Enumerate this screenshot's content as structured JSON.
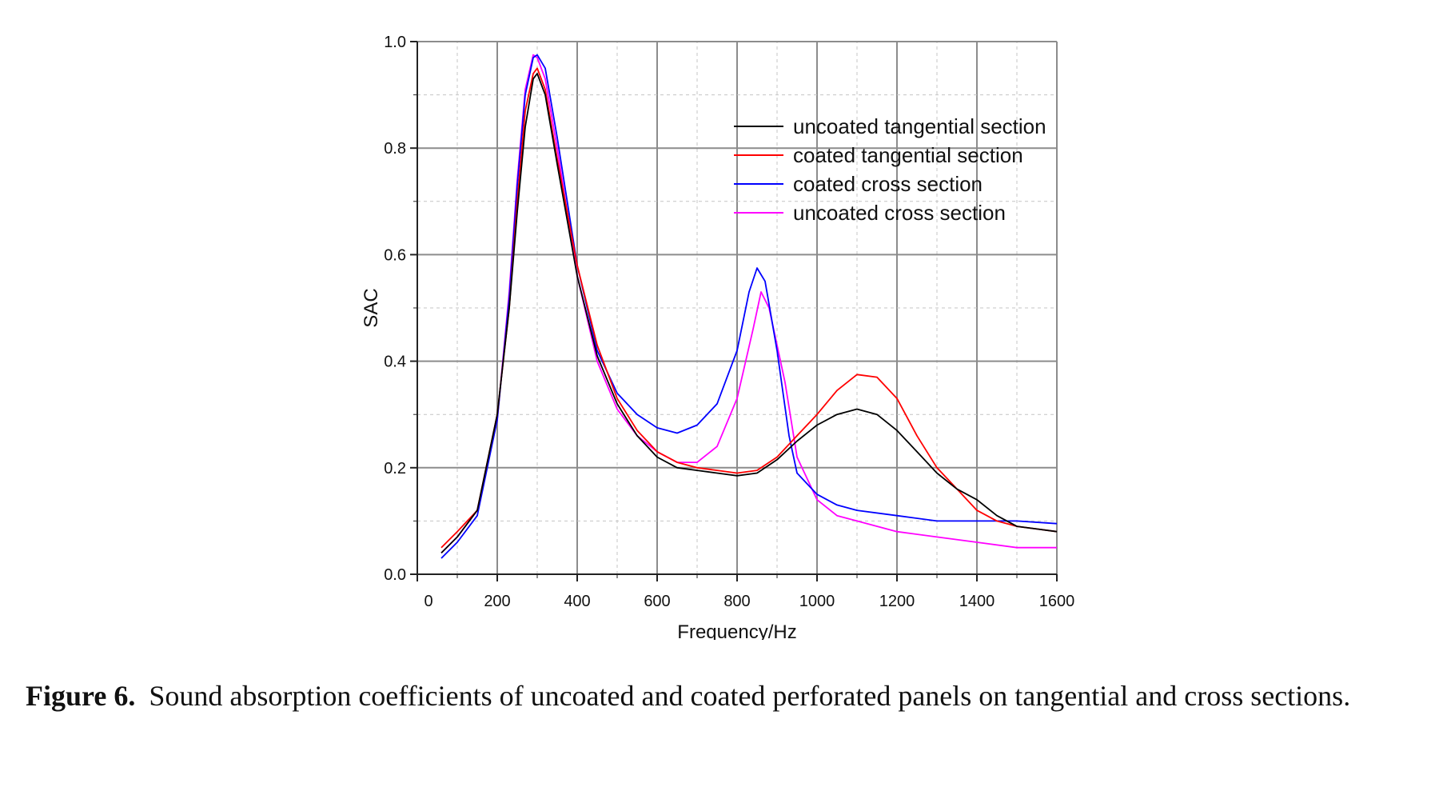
{
  "chart_data": {
    "type": "line",
    "xlabel": "Frequency/Hz",
    "ylabel": "SAC",
    "xlim": [
      0,
      1600
    ],
    "ylim": [
      0,
      1.0
    ],
    "x_ticks": [
      "0",
      "200",
      "400",
      "600",
      "800",
      "1000",
      "1200",
      "1400",
      "1600"
    ],
    "y_ticks": [
      "0.0",
      "0.2",
      "0.4",
      "0.6",
      "0.8",
      "1.0"
    ],
    "grid": true,
    "legend_position": "top-right",
    "series": [
      {
        "name": "uncoated tangential section",
        "color": "#000000",
        "points": [
          [
            60,
            0.04
          ],
          [
            100,
            0.07
          ],
          [
            150,
            0.12
          ],
          [
            200,
            0.3
          ],
          [
            230,
            0.5
          ],
          [
            250,
            0.68
          ],
          [
            270,
            0.84
          ],
          [
            290,
            0.93
          ],
          [
            300,
            0.94
          ],
          [
            320,
            0.9
          ],
          [
            350,
            0.77
          ],
          [
            400,
            0.56
          ],
          [
            450,
            0.41
          ],
          [
            500,
            0.32
          ],
          [
            550,
            0.26
          ],
          [
            600,
            0.22
          ],
          [
            650,
            0.2
          ],
          [
            700,
            0.195
          ],
          [
            750,
            0.19
          ],
          [
            800,
            0.185
          ],
          [
            850,
            0.19
          ],
          [
            900,
            0.215
          ],
          [
            950,
            0.25
          ],
          [
            1000,
            0.28
          ],
          [
            1050,
            0.3
          ],
          [
            1100,
            0.31
          ],
          [
            1150,
            0.3
          ],
          [
            1200,
            0.27
          ],
          [
            1250,
            0.23
          ],
          [
            1300,
            0.19
          ],
          [
            1350,
            0.16
          ],
          [
            1400,
            0.14
          ],
          [
            1450,
            0.11
          ],
          [
            1500,
            0.09
          ],
          [
            1550,
            0.085
          ],
          [
            1600,
            0.08
          ]
        ]
      },
      {
        "name": "coated tangential section",
        "color": "#ff0000",
        "points": [
          [
            60,
            0.05
          ],
          [
            100,
            0.08
          ],
          [
            150,
            0.12
          ],
          [
            200,
            0.3
          ],
          [
            230,
            0.5
          ],
          [
            250,
            0.7
          ],
          [
            270,
            0.87
          ],
          [
            290,
            0.94
          ],
          [
            300,
            0.95
          ],
          [
            320,
            0.91
          ],
          [
            350,
            0.78
          ],
          [
            400,
            0.58
          ],
          [
            450,
            0.43
          ],
          [
            500,
            0.33
          ],
          [
            550,
            0.27
          ],
          [
            600,
            0.23
          ],
          [
            650,
            0.21
          ],
          [
            700,
            0.2
          ],
          [
            750,
            0.195
          ],
          [
            800,
            0.19
          ],
          [
            850,
            0.195
          ],
          [
            900,
            0.22
          ],
          [
            950,
            0.26
          ],
          [
            1000,
            0.3
          ],
          [
            1050,
            0.345
          ],
          [
            1100,
            0.375
          ],
          [
            1150,
            0.37
          ],
          [
            1200,
            0.33
          ],
          [
            1250,
            0.26
          ],
          [
            1300,
            0.2
          ],
          [
            1350,
            0.16
          ],
          [
            1400,
            0.12
          ],
          [
            1450,
            0.1
          ],
          [
            1500,
            0.09
          ],
          [
            1550,
            0.085
          ],
          [
            1600,
            0.08
          ]
        ]
      },
      {
        "name": "coated cross section",
        "color": "#0000ff",
        "points": [
          [
            60,
            0.03
          ],
          [
            100,
            0.06
          ],
          [
            150,
            0.11
          ],
          [
            200,
            0.29
          ],
          [
            230,
            0.52
          ],
          [
            250,
            0.73
          ],
          [
            270,
            0.9
          ],
          [
            290,
            0.97
          ],
          [
            300,
            0.975
          ],
          [
            320,
            0.95
          ],
          [
            350,
            0.82
          ],
          [
            400,
            0.58
          ],
          [
            450,
            0.42
          ],
          [
            500,
            0.34
          ],
          [
            550,
            0.3
          ],
          [
            600,
            0.275
          ],
          [
            650,
            0.265
          ],
          [
            700,
            0.28
          ],
          [
            750,
            0.32
          ],
          [
            800,
            0.42
          ],
          [
            830,
            0.53
          ],
          [
            850,
            0.575
          ],
          [
            870,
            0.55
          ],
          [
            900,
            0.42
          ],
          [
            930,
            0.26
          ],
          [
            950,
            0.19
          ],
          [
            1000,
            0.15
          ],
          [
            1050,
            0.13
          ],
          [
            1100,
            0.12
          ],
          [
            1200,
            0.11
          ],
          [
            1300,
            0.1
          ],
          [
            1400,
            0.1
          ],
          [
            1500,
            0.1
          ],
          [
            1600,
            0.095
          ]
        ]
      },
      {
        "name": "uncoated cross section",
        "color": "#ff00ff",
        "points": [
          [
            60,
            0.04
          ],
          [
            100,
            0.07
          ],
          [
            150,
            0.12
          ],
          [
            200,
            0.29
          ],
          [
            230,
            0.53
          ],
          [
            250,
            0.74
          ],
          [
            270,
            0.91
          ],
          [
            290,
            0.975
          ],
          [
            300,
            0.97
          ],
          [
            320,
            0.93
          ],
          [
            350,
            0.8
          ],
          [
            400,
            0.56
          ],
          [
            450,
            0.4
          ],
          [
            500,
            0.31
          ],
          [
            550,
            0.26
          ],
          [
            600,
            0.23
          ],
          [
            650,
            0.21
          ],
          [
            700,
            0.21
          ],
          [
            750,
            0.24
          ],
          [
            800,
            0.33
          ],
          [
            840,
            0.46
          ],
          [
            860,
            0.53
          ],
          [
            880,
            0.5
          ],
          [
            920,
            0.36
          ],
          [
            950,
            0.22
          ],
          [
            1000,
            0.14
          ],
          [
            1050,
            0.11
          ],
          [
            1100,
            0.1
          ],
          [
            1200,
            0.08
          ],
          [
            1300,
            0.07
          ],
          [
            1400,
            0.06
          ],
          [
            1500,
            0.05
          ],
          [
            1600,
            0.05
          ]
        ]
      }
    ]
  },
  "caption": {
    "label": "Figure 6.",
    "text": "Sound absorption coefficients of uncoated and coated perforated panels on tangential and cross sections."
  }
}
